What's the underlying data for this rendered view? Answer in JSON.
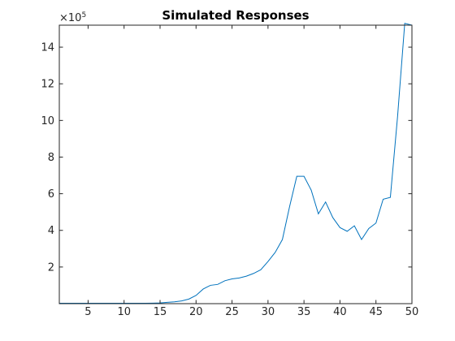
{
  "chart_data": {
    "type": "line",
    "title": "Simulated Responses",
    "xlabel": "",
    "ylabel": "",
    "y_exponent_label": "×10",
    "y_exponent_power": "5",
    "y_scale_factor": 100000,
    "xlim": [
      1,
      50
    ],
    "ylim": [
      0,
      15.2
    ],
    "x_ticks": [
      5,
      10,
      15,
      20,
      25,
      30,
      35,
      40,
      45,
      50
    ],
    "y_ticks": [
      2,
      4,
      6,
      8,
      10,
      12,
      14
    ],
    "grid": false,
    "legend": "none",
    "series": [
      {
        "color": "#0072BD",
        "x": [
          1,
          2,
          3,
          4,
          5,
          6,
          7,
          8,
          9,
          10,
          11,
          12,
          13,
          14,
          15,
          16,
          17,
          18,
          19,
          20,
          21,
          22,
          23,
          24,
          25,
          26,
          27,
          28,
          29,
          30,
          31,
          32,
          33,
          34,
          35,
          36,
          37,
          38,
          39,
          40,
          41,
          42,
          43,
          44,
          45,
          46,
          47,
          48,
          49,
          50
        ],
        "y": [
          0.02,
          0.02,
          0.02,
          0.02,
          0.02,
          0.02,
          0.02,
          0.02,
          0.02,
          0.02,
          0.02,
          0.02,
          0.02,
          0.03,
          0.04,
          0.07,
          0.1,
          0.15,
          0.25,
          0.45,
          0.8,
          1.0,
          1.05,
          1.25,
          1.35,
          1.4,
          1.5,
          1.65,
          1.85,
          2.3,
          2.8,
          3.5,
          5.3,
          6.95,
          6.95,
          6.2,
          4.9,
          5.55,
          4.7,
          4.15,
          3.95,
          4.25,
          3.5,
          4.1,
          4.4,
          5.7,
          5.8,
          10.2,
          15.3,
          15.2
        ]
      }
    ]
  }
}
